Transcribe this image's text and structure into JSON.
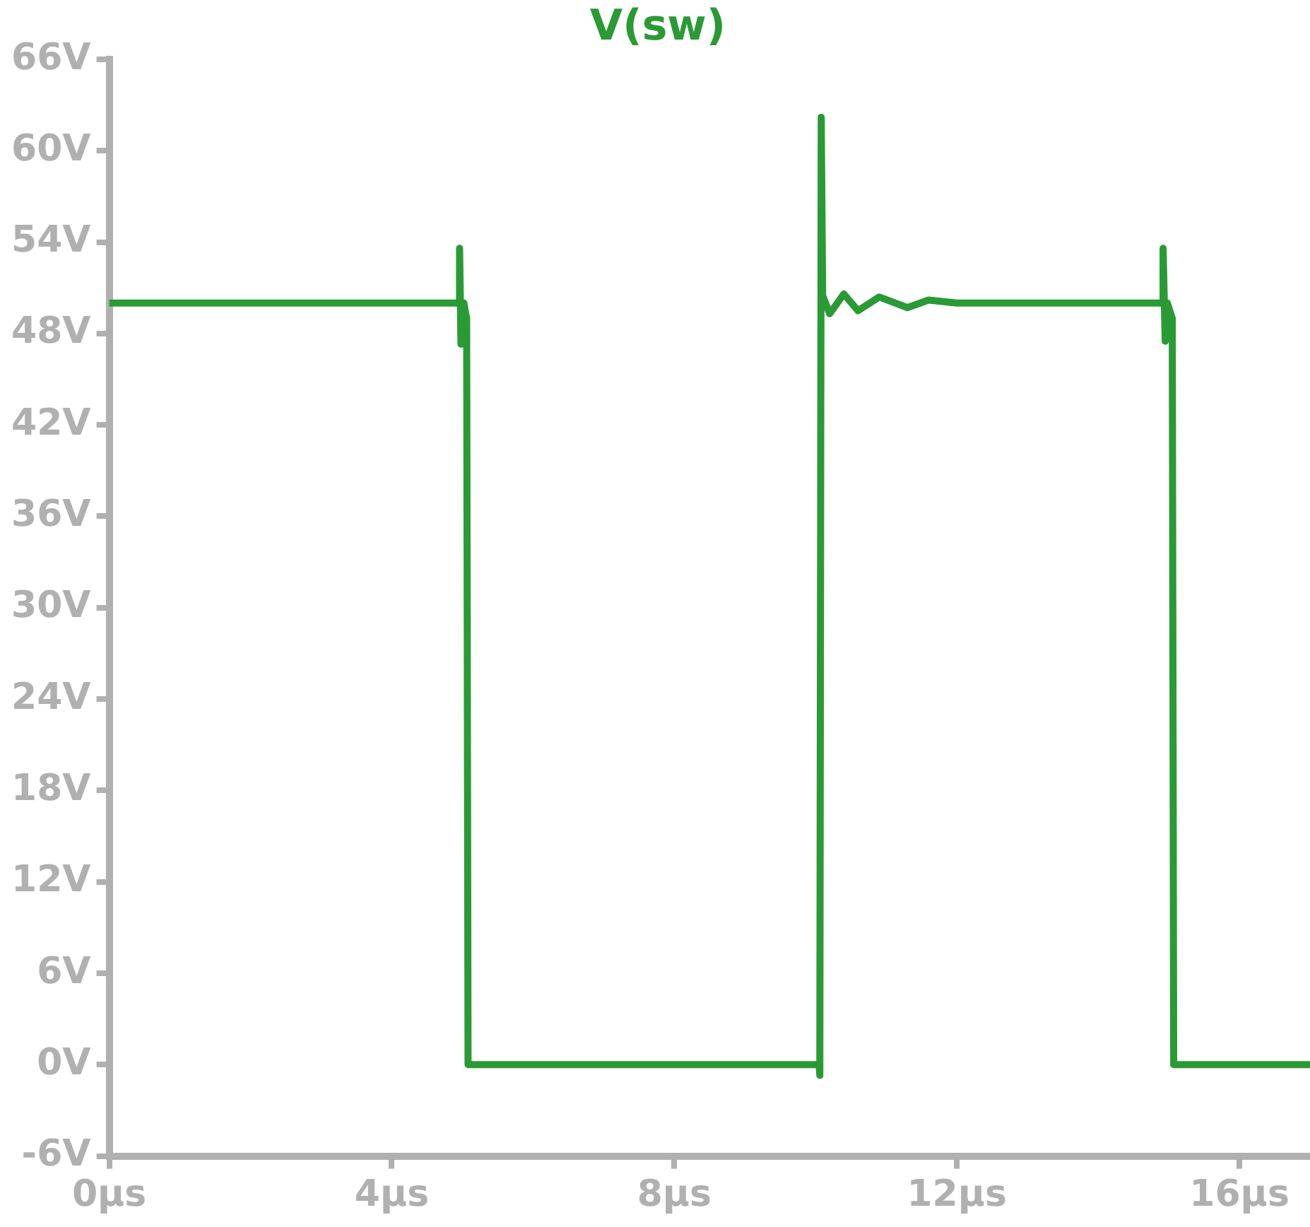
{
  "chart_data": {
    "type": "line",
    "title": "V(sw)",
    "x": [
      0,
      4.96,
      4.96,
      4.98,
      5.02,
      5.06,
      5.08,
      10.05,
      10.06,
      10.08,
      10.1,
      10.2,
      10.4,
      10.6,
      10.9,
      11.3,
      11.6,
      12,
      14.92,
      14.92,
      14.95,
      14.98,
      15.05,
      15.07,
      17
    ],
    "series": [
      {
        "color": "#2a9a35",
        "values": [
          50,
          50,
          53.6,
          47.3,
          50,
          49,
          0,
          0,
          -0.7,
          62.2,
          50.5,
          49.3,
          50.6,
          49.5,
          50.4,
          49.7,
          50.2,
          50,
          50,
          53.6,
          47.5,
          50,
          49,
          0,
          0
        ]
      }
    ],
    "xlim": [
      0,
      17
    ],
    "xticks": [
      {
        "value": 0,
        "label": "0µs"
      },
      {
        "value": 4,
        "label": "4µs"
      },
      {
        "value": 8,
        "label": "8µs"
      },
      {
        "value": 12,
        "label": "12µs"
      },
      {
        "value": 16,
        "label": "16µs"
      }
    ],
    "ylim": [
      -6,
      66
    ],
    "yticks": [
      {
        "value": -6,
        "label": "-6V"
      },
      {
        "value": 0,
        "label": "0V"
      },
      {
        "value": 6,
        "label": "6V"
      },
      {
        "value": 12,
        "label": "12V"
      },
      {
        "value": 18,
        "label": "18V"
      },
      {
        "value": 24,
        "label": "24V"
      },
      {
        "value": 30,
        "label": "30V"
      },
      {
        "value": 36,
        "label": "36V"
      },
      {
        "value": 42,
        "label": "42V"
      },
      {
        "value": 48,
        "label": "48V"
      },
      {
        "value": 54,
        "label": "54V"
      },
      {
        "value": 60,
        "label": "60V"
      },
      {
        "value": 66,
        "label": "66V"
      }
    ],
    "grid": false,
    "legend": false,
    "marker": "none",
    "line_style": "solid"
  }
}
